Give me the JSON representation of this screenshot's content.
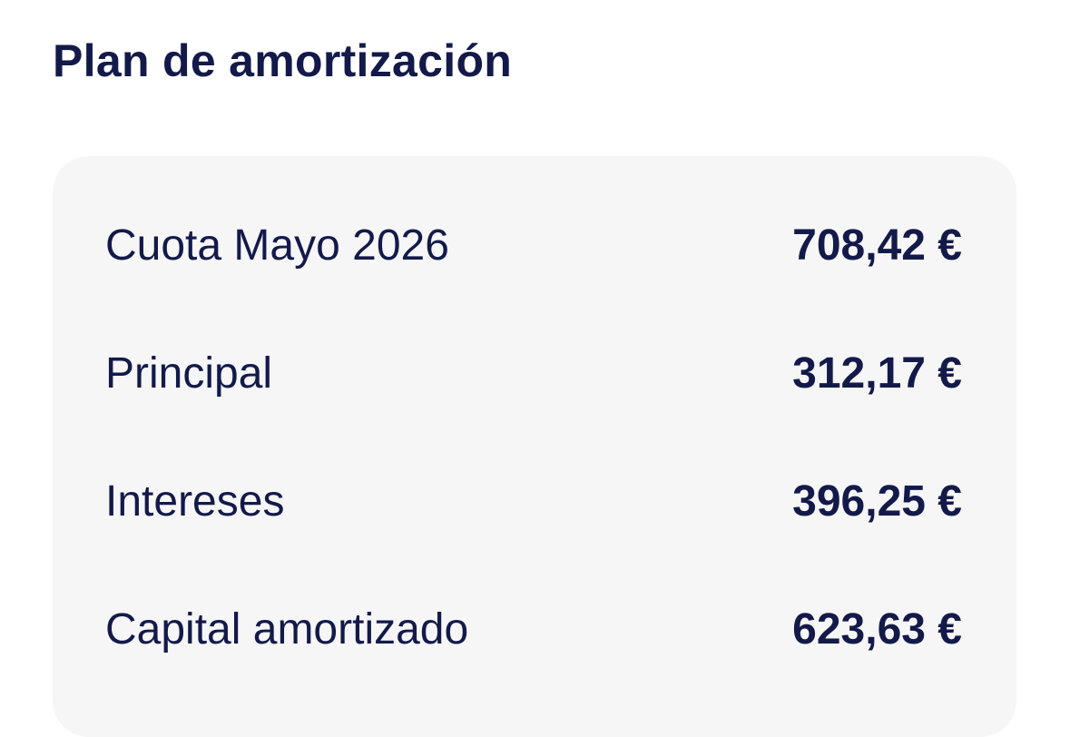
{
  "header": {
    "title": "Plan de amortización"
  },
  "rows": [
    {
      "label": "Cuota Mayo 2026",
      "value": "708,42 €"
    },
    {
      "label": "Principal",
      "value": "312,17 €"
    },
    {
      "label": "Intereses",
      "value": "396,25 €"
    },
    {
      "label": "Capital amortizado",
      "value": "623,63 €"
    }
  ]
}
